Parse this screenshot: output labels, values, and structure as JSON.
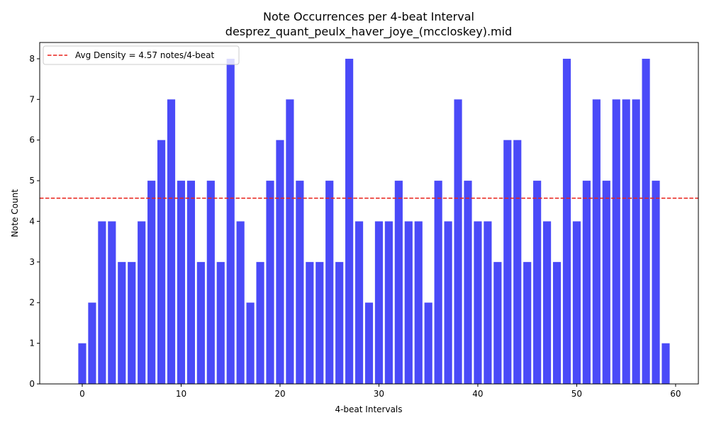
{
  "chart_data": {
    "type": "bar",
    "title": "Note Occurrences per 4-beat Interval",
    "subtitle": "desprez_quant_peulx_haver_joye_(mccloskey).mid",
    "xlabel": "4-beat Intervals",
    "ylabel": "Note Count",
    "x": [
      0,
      1,
      2,
      3,
      4,
      5,
      6,
      7,
      8,
      9,
      10,
      11,
      12,
      13,
      14,
      15,
      16,
      17,
      18,
      19,
      20,
      21,
      22,
      23,
      24,
      25,
      26,
      27,
      28,
      29,
      30,
      31,
      32,
      33,
      34,
      35,
      36,
      37,
      38,
      39,
      40,
      41,
      42,
      43,
      44,
      45,
      46,
      47,
      48,
      49,
      50,
      51,
      52,
      53,
      54,
      55,
      56,
      57,
      58,
      59
    ],
    "values": [
      1,
      2,
      4,
      4,
      3,
      3,
      4,
      5,
      6,
      7,
      5,
      5,
      3,
      5,
      3,
      8,
      4,
      2,
      3,
      5,
      6,
      7,
      5,
      3,
      3,
      5,
      3,
      8,
      4,
      2,
      4,
      4,
      5,
      4,
      4,
      2,
      5,
      4,
      7,
      5,
      4,
      4,
      3,
      6,
      6,
      3,
      5,
      4,
      3,
      8,
      4,
      5,
      7,
      5,
      7,
      7,
      7,
      8,
      5,
      1
    ],
    "xlim": [
      -4.3,
      62.3
    ],
    "ylim": [
      0,
      8.4
    ],
    "xticks": [
      0,
      10,
      20,
      30,
      40,
      50,
      60
    ],
    "yticks": [
      0,
      1,
      2,
      3,
      4,
      5,
      6,
      7,
      8
    ],
    "bar_color": "#4a4af8",
    "reference_line": {
      "value": 4.57,
      "label": "Avg Density = 4.57 notes/4-beat",
      "color": "#e8211a"
    },
    "legend_position": "top-left",
    "grid": false
  }
}
